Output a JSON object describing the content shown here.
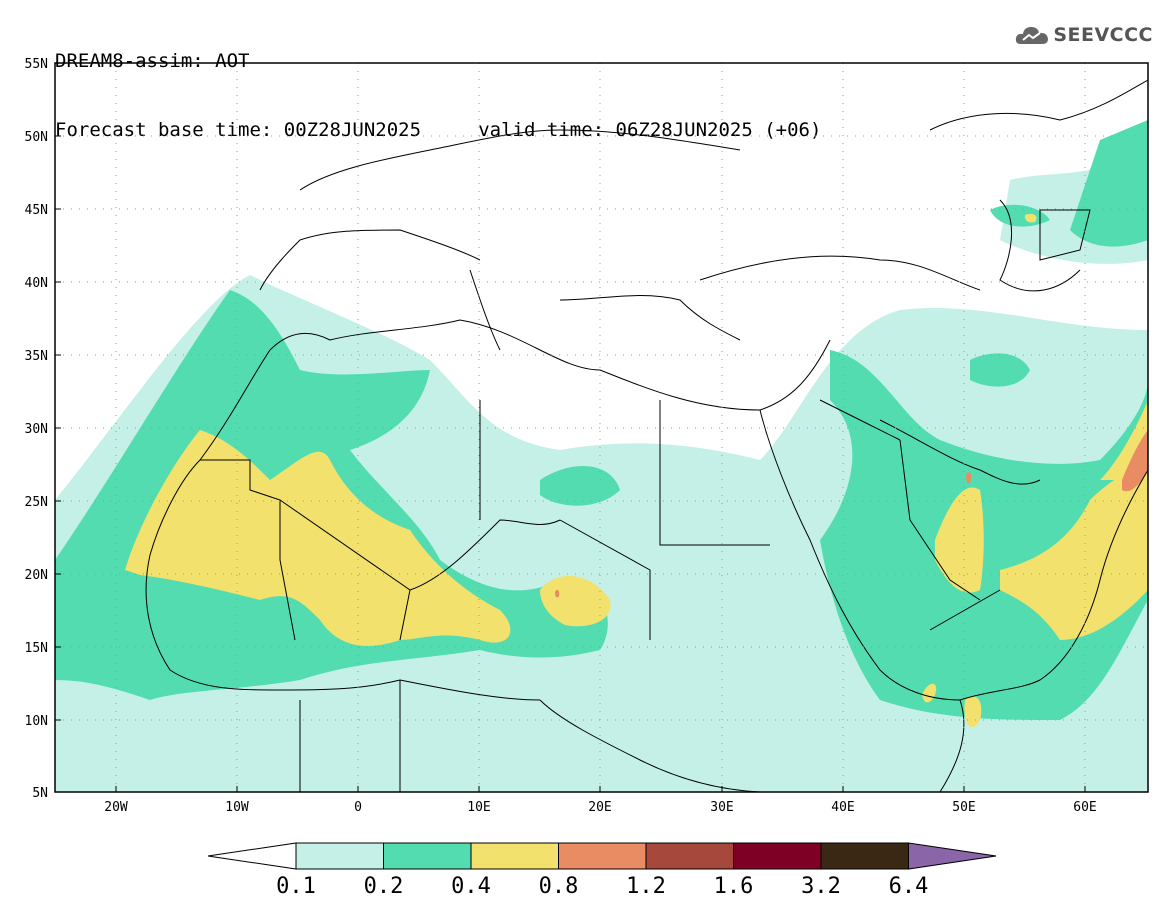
{
  "header": {
    "title_line1": "DREAM8-assim: AOT",
    "title_line2": "Forecast base time: 00Z28JUN2025     valid time: 06Z28JUN2025 (+06)",
    "logo_text": "SEEVCCC"
  },
  "map": {
    "lat_labels": [
      "55N",
      "50N",
      "45N",
      "40N",
      "35N",
      "30N",
      "25N",
      "20N",
      "15N",
      "10N",
      "5N"
    ],
    "lon_labels": [
      "20W",
      "10W",
      "0",
      "10E",
      "20E",
      "30E",
      "40E",
      "50E",
      "60E"
    ]
  },
  "legend": {
    "labels": [
      "0.1",
      "0.2",
      "0.4",
      "0.8",
      "1.2",
      "1.6",
      "3.2",
      "6.4"
    ],
    "colors": [
      "#ffffff",
      "#c4f0e8",
      "#52dcb0",
      "#f2e16c",
      "#e98b63",
      "#a6483b",
      "#7e0024",
      "#3b2814",
      "#8a66a8"
    ]
  }
}
